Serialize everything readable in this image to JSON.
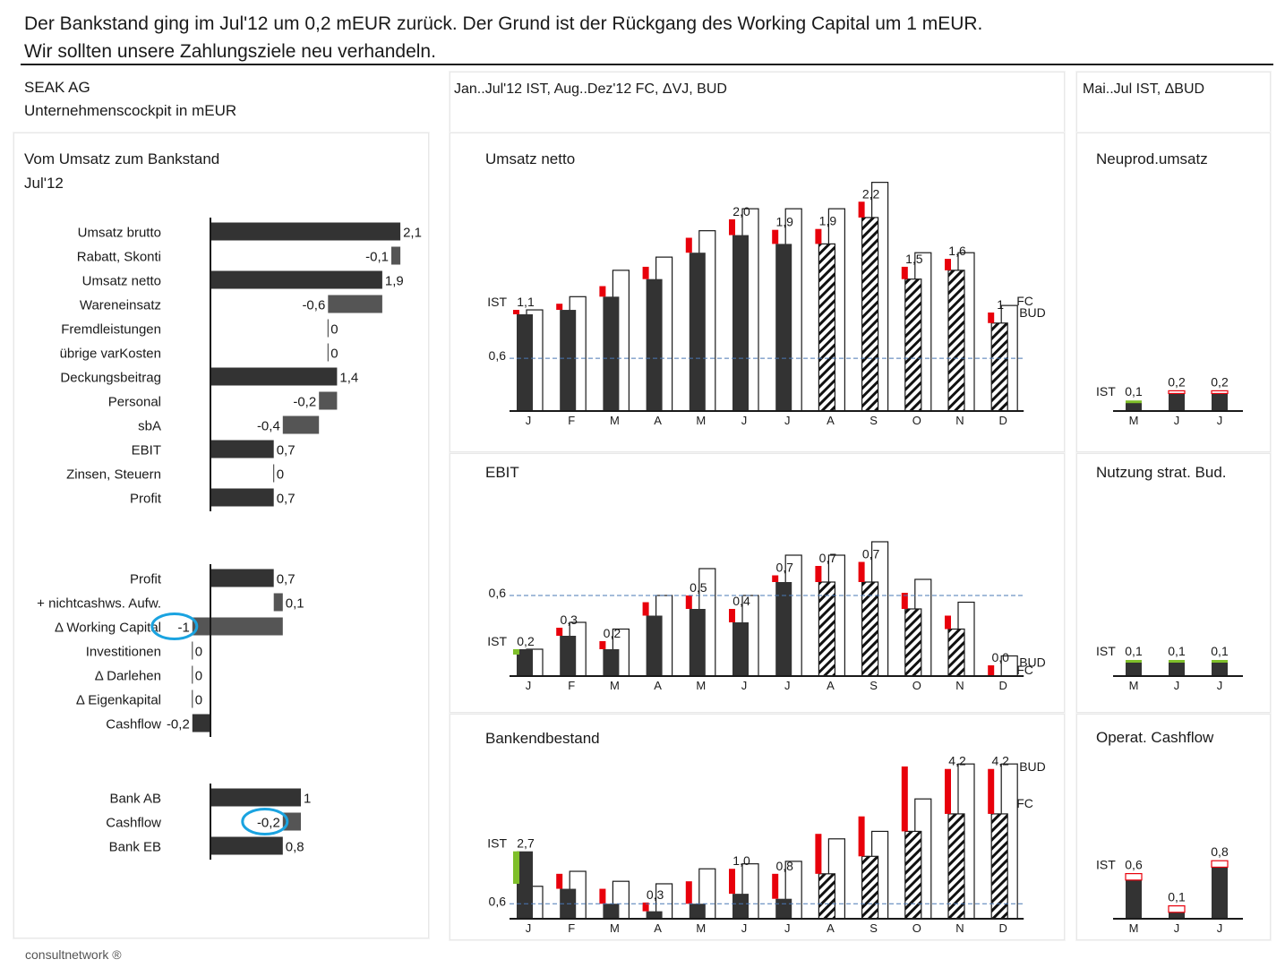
{
  "headline": {
    "line1": "Der Bankstand ging im Jul'12 um 0,2 mEUR zurück. Der Grund ist der Rückgang des Working Capital um 1 mEUR.",
    "line2": "Wir sollten unsere Zahlungsziele neu verhandeln."
  },
  "header": {
    "company": "SEAK AG",
    "subtitle": "Unternehmenscockpit in mEUR",
    "middle": "Jan..Jul'12 IST, Aug..Dez'12 FC, ΔVJ, BUD",
    "right": "Mai..Jul IST, ΔBUD"
  },
  "colors": {
    "actual": "#333333",
    "bridge": "#555555",
    "negative": "#e8000b",
    "positive": "#7fbf2a",
    "highlight": "#1aa3e0",
    "reference": "#4a78b5"
  },
  "footer": "consultnetwork ®",
  "chart_data": [
    {
      "id": "bridge",
      "type": "bar",
      "title": "Vom Umsatz zum Bankstand",
      "subtitle": "Jul'12",
      "groups": [
        {
          "items": [
            {
              "label": "Umsatz brutto",
              "value": 2.1,
              "value_label": "2,1",
              "kind": "total"
            },
            {
              "label": "Rabatt, Skonti",
              "value": -0.1,
              "value_label": "-0,1",
              "kind": "delta"
            },
            {
              "label": "Umsatz netto",
              "value": 1.9,
              "value_label": "1,9",
              "kind": "total"
            },
            {
              "label": "Wareneinsatz",
              "value": -0.6,
              "value_label": "-0,6",
              "kind": "delta"
            },
            {
              "label": "Fremdleistungen",
              "value": 0,
              "value_label": "0",
              "kind": "delta"
            },
            {
              "label": "übrige varKosten",
              "value": 0,
              "value_label": "0",
              "kind": "delta"
            },
            {
              "label": "Deckungsbeitrag",
              "value": 1.4,
              "value_label": "1,4",
              "kind": "total"
            },
            {
              "label": "Personal",
              "value": -0.2,
              "value_label": "-0,2",
              "kind": "delta"
            },
            {
              "label": "sbA",
              "value": -0.4,
              "value_label": "-0,4",
              "kind": "delta"
            },
            {
              "label": "EBIT",
              "value": 0.7,
              "value_label": "0,7",
              "kind": "total"
            },
            {
              "label": "Zinsen, Steuern",
              "value": 0,
              "value_label": "0",
              "kind": "delta"
            },
            {
              "label": "Profit",
              "value": 0.7,
              "value_label": "0,7",
              "kind": "total"
            }
          ]
        },
        {
          "items": [
            {
              "label": "Profit",
              "value": 0.7,
              "value_label": "0,7",
              "kind": "total"
            },
            {
              "label": "+ nichtcashws. Aufw.",
              "value": 0.1,
              "value_label": "0,1",
              "kind": "delta"
            },
            {
              "label": "Δ Working Capital",
              "value": -1,
              "value_label": "-1",
              "kind": "delta",
              "highlight": true
            },
            {
              "label": "Investitionen",
              "value": 0,
              "value_label": "0",
              "kind": "delta"
            },
            {
              "label": "Δ Darlehen",
              "value": 0,
              "value_label": "0",
              "kind": "delta"
            },
            {
              "label": "Δ Eigenkapital",
              "value": 0,
              "value_label": "0",
              "kind": "delta"
            },
            {
              "label": "Cashflow",
              "value": -0.2,
              "value_label": "-0,2",
              "kind": "total"
            }
          ]
        },
        {
          "items": [
            {
              "label": "Bank AB",
              "value": 1,
              "value_label": "1",
              "kind": "total"
            },
            {
              "label": "Cashflow",
              "value": -0.2,
              "value_label": "-0,2",
              "kind": "delta",
              "highlight": true
            },
            {
              "label": "Bank EB",
              "value": 0.8,
              "value_label": "0,8",
              "kind": "total"
            }
          ]
        }
      ]
    },
    {
      "id": "umsatz",
      "type": "bar",
      "title": "Umsatz netto",
      "categories": [
        "J",
        "F",
        "M",
        "A",
        "M",
        "J",
        "J",
        "A",
        "S",
        "O",
        "N",
        "D"
      ],
      "actual_months": 7,
      "series": [
        {
          "name": "IST",
          "values": [
            1.1,
            1.15,
            1.3,
            1.5,
            1.8,
            2.0,
            1.9,
            1.9,
            2.2,
            1.5,
            1.6,
            1.0
          ]
        },
        {
          "name": "ΔVJ",
          "values": [
            -0.05,
            -0.07,
            -0.12,
            -0.14,
            -0.17,
            -0.18,
            -0.16,
            -0.17,
            -0.18,
            -0.14,
            -0.13,
            -0.12
          ]
        },
        {
          "name": "BUD",
          "values": [
            1.15,
            1.3,
            1.6,
            1.75,
            2.05,
            2.3,
            2.3,
            2.3,
            2.6,
            1.8,
            1.8,
            1.2
          ]
        }
      ],
      "labels": [
        {
          "month": 0,
          "text": "1,1"
        },
        {
          "month": 5,
          "text": "2,0"
        },
        {
          "month": 6,
          "text": "1,9"
        },
        {
          "month": 7,
          "text": "1,9"
        },
        {
          "month": 8,
          "text": "2,2"
        },
        {
          "month": 9,
          "text": "1,5"
        },
        {
          "month": 10,
          "text": "1,6"
        },
        {
          "month": 11,
          "text": "1"
        }
      ],
      "reference": {
        "value": 0.6,
        "label": "0,6"
      },
      "series_tags": {
        "ist": "IST",
        "fc": "FC",
        "bud": "BUD"
      },
      "ylim": [
        0,
        2.8
      ]
    },
    {
      "id": "ebit",
      "type": "bar",
      "title": "EBIT",
      "categories": [
        "J",
        "F",
        "M",
        "A",
        "M",
        "J",
        "J",
        "A",
        "S",
        "O",
        "N",
        "D"
      ],
      "actual_months": 7,
      "series": [
        {
          "name": "IST",
          "values": [
            0.2,
            0.3,
            0.2,
            0.45,
            0.5,
            0.4,
            0.7,
            0.7,
            0.7,
            0.5,
            0.35,
            0.0
          ]
        },
        {
          "name": "ΔVJ",
          "values": [
            0.04,
            -0.06,
            -0.06,
            -0.1,
            -0.1,
            -0.1,
            -0.05,
            -0.12,
            -0.15,
            -0.12,
            -0.1,
            -0.08
          ]
        },
        {
          "name": "BUD",
          "values": [
            0.2,
            0.4,
            0.35,
            0.6,
            0.8,
            0.6,
            0.9,
            0.9,
            1.0,
            0.72,
            0.55,
            0.15
          ]
        }
      ],
      "labels": [
        {
          "month": 0,
          "text": "0,2"
        },
        {
          "month": 1,
          "text": "0,3"
        },
        {
          "month": 2,
          "text": "0,2"
        },
        {
          "month": 4,
          "text": "0,5"
        },
        {
          "month": 5,
          "text": "0,4"
        },
        {
          "month": 6,
          "text": "0,7"
        },
        {
          "month": 7,
          "text": "0,7"
        },
        {
          "month": 8,
          "text": "0,7"
        },
        {
          "month": 11,
          "text": "0,0"
        }
      ],
      "reference": {
        "value": 0.6,
        "label": "0,6"
      },
      "series_tags": {
        "ist": "IST",
        "fc": "FC",
        "bud": "BUD"
      },
      "ylim": [
        0,
        1.2
      ]
    },
    {
      "id": "bank",
      "type": "bar",
      "title": "Bankendbestand",
      "categories": [
        "J",
        "F",
        "M",
        "A",
        "M",
        "J",
        "J",
        "A",
        "S",
        "O",
        "N",
        "D"
      ],
      "actual_months": 7,
      "series": [
        {
          "name": "IST",
          "values": [
            2.7,
            1.2,
            0.6,
            0.3,
            0.6,
            1.0,
            0.8,
            1.8,
            2.5,
            3.5,
            4.2,
            4.2
          ]
        },
        {
          "name": "ΔVJ",
          "values": [
            1.3,
            -0.6,
            -0.6,
            -0.35,
            -0.9,
            -1.0,
            -1.0,
            -1.6,
            -1.6,
            -2.6,
            -1.8,
            -1.8
          ]
        },
        {
          "name": "BUD",
          "values": [
            1.3,
            1.9,
            1.5,
            1.4,
            2.0,
            2.2,
            2.3,
            3.2,
            3.5,
            4.8,
            6.2,
            6.2
          ]
        }
      ],
      "labels": [
        {
          "month": 0,
          "text": "2,7"
        },
        {
          "month": 3,
          "text": "0,3"
        },
        {
          "month": 5,
          "text": "1,0"
        },
        {
          "month": 6,
          "text": "0,8"
        },
        {
          "month": 10,
          "text": "4,2"
        },
        {
          "month": 11,
          "text": "4,2"
        }
      ],
      "reference": {
        "value": 0.6,
        "label": "0,6"
      },
      "series_tags": {
        "ist": "IST",
        "fc": "FC",
        "bud": "BUD"
      },
      "ylim": [
        0,
        6.6
      ]
    },
    {
      "id": "neuprod",
      "type": "bar",
      "title": "Neuprod.umsatz",
      "categories": [
        "M",
        "J",
        "J"
      ],
      "series": [
        {
          "name": "IST",
          "values": [
            0.1,
            0.2,
            0.2
          ]
        },
        {
          "name": "ΔBUD",
          "values": [
            0.02,
            -0.03,
            -0.03
          ]
        }
      ],
      "labels": [
        "0,1",
        "0,2",
        "0,2"
      ],
      "ist_tag": "IST",
      "ylim": [
        0,
        2.8
      ]
    },
    {
      "id": "nutzung",
      "type": "bar",
      "title": "Nutzung strat. Bud.",
      "categories": [
        "M",
        "J",
        "J"
      ],
      "series": [
        {
          "name": "IST",
          "values": [
            0.1,
            0.1,
            0.1
          ]
        },
        {
          "name": "ΔBUD",
          "values": [
            0.02,
            0.02,
            0.02
          ]
        }
      ],
      "labels": [
        "0,1",
        "0,1",
        "0,1"
      ],
      "ist_tag": "IST",
      "ylim": [
        0,
        1.2
      ]
    },
    {
      "id": "cashflow",
      "type": "bar",
      "title": "Operat. Cashflow",
      "categories": [
        "M",
        "J",
        "J"
      ],
      "series": [
        {
          "name": "IST",
          "values": [
            0.6,
            0.1,
            0.8
          ]
        },
        {
          "name": "ΔBUD",
          "values": [
            -0.1,
            -0.1,
            -0.1
          ]
        }
      ],
      "labels": [
        "0,6",
        "0,1",
        "0,8"
      ],
      "ist_tag": "IST",
      "ylim": [
        0,
        1.25
      ]
    }
  ]
}
